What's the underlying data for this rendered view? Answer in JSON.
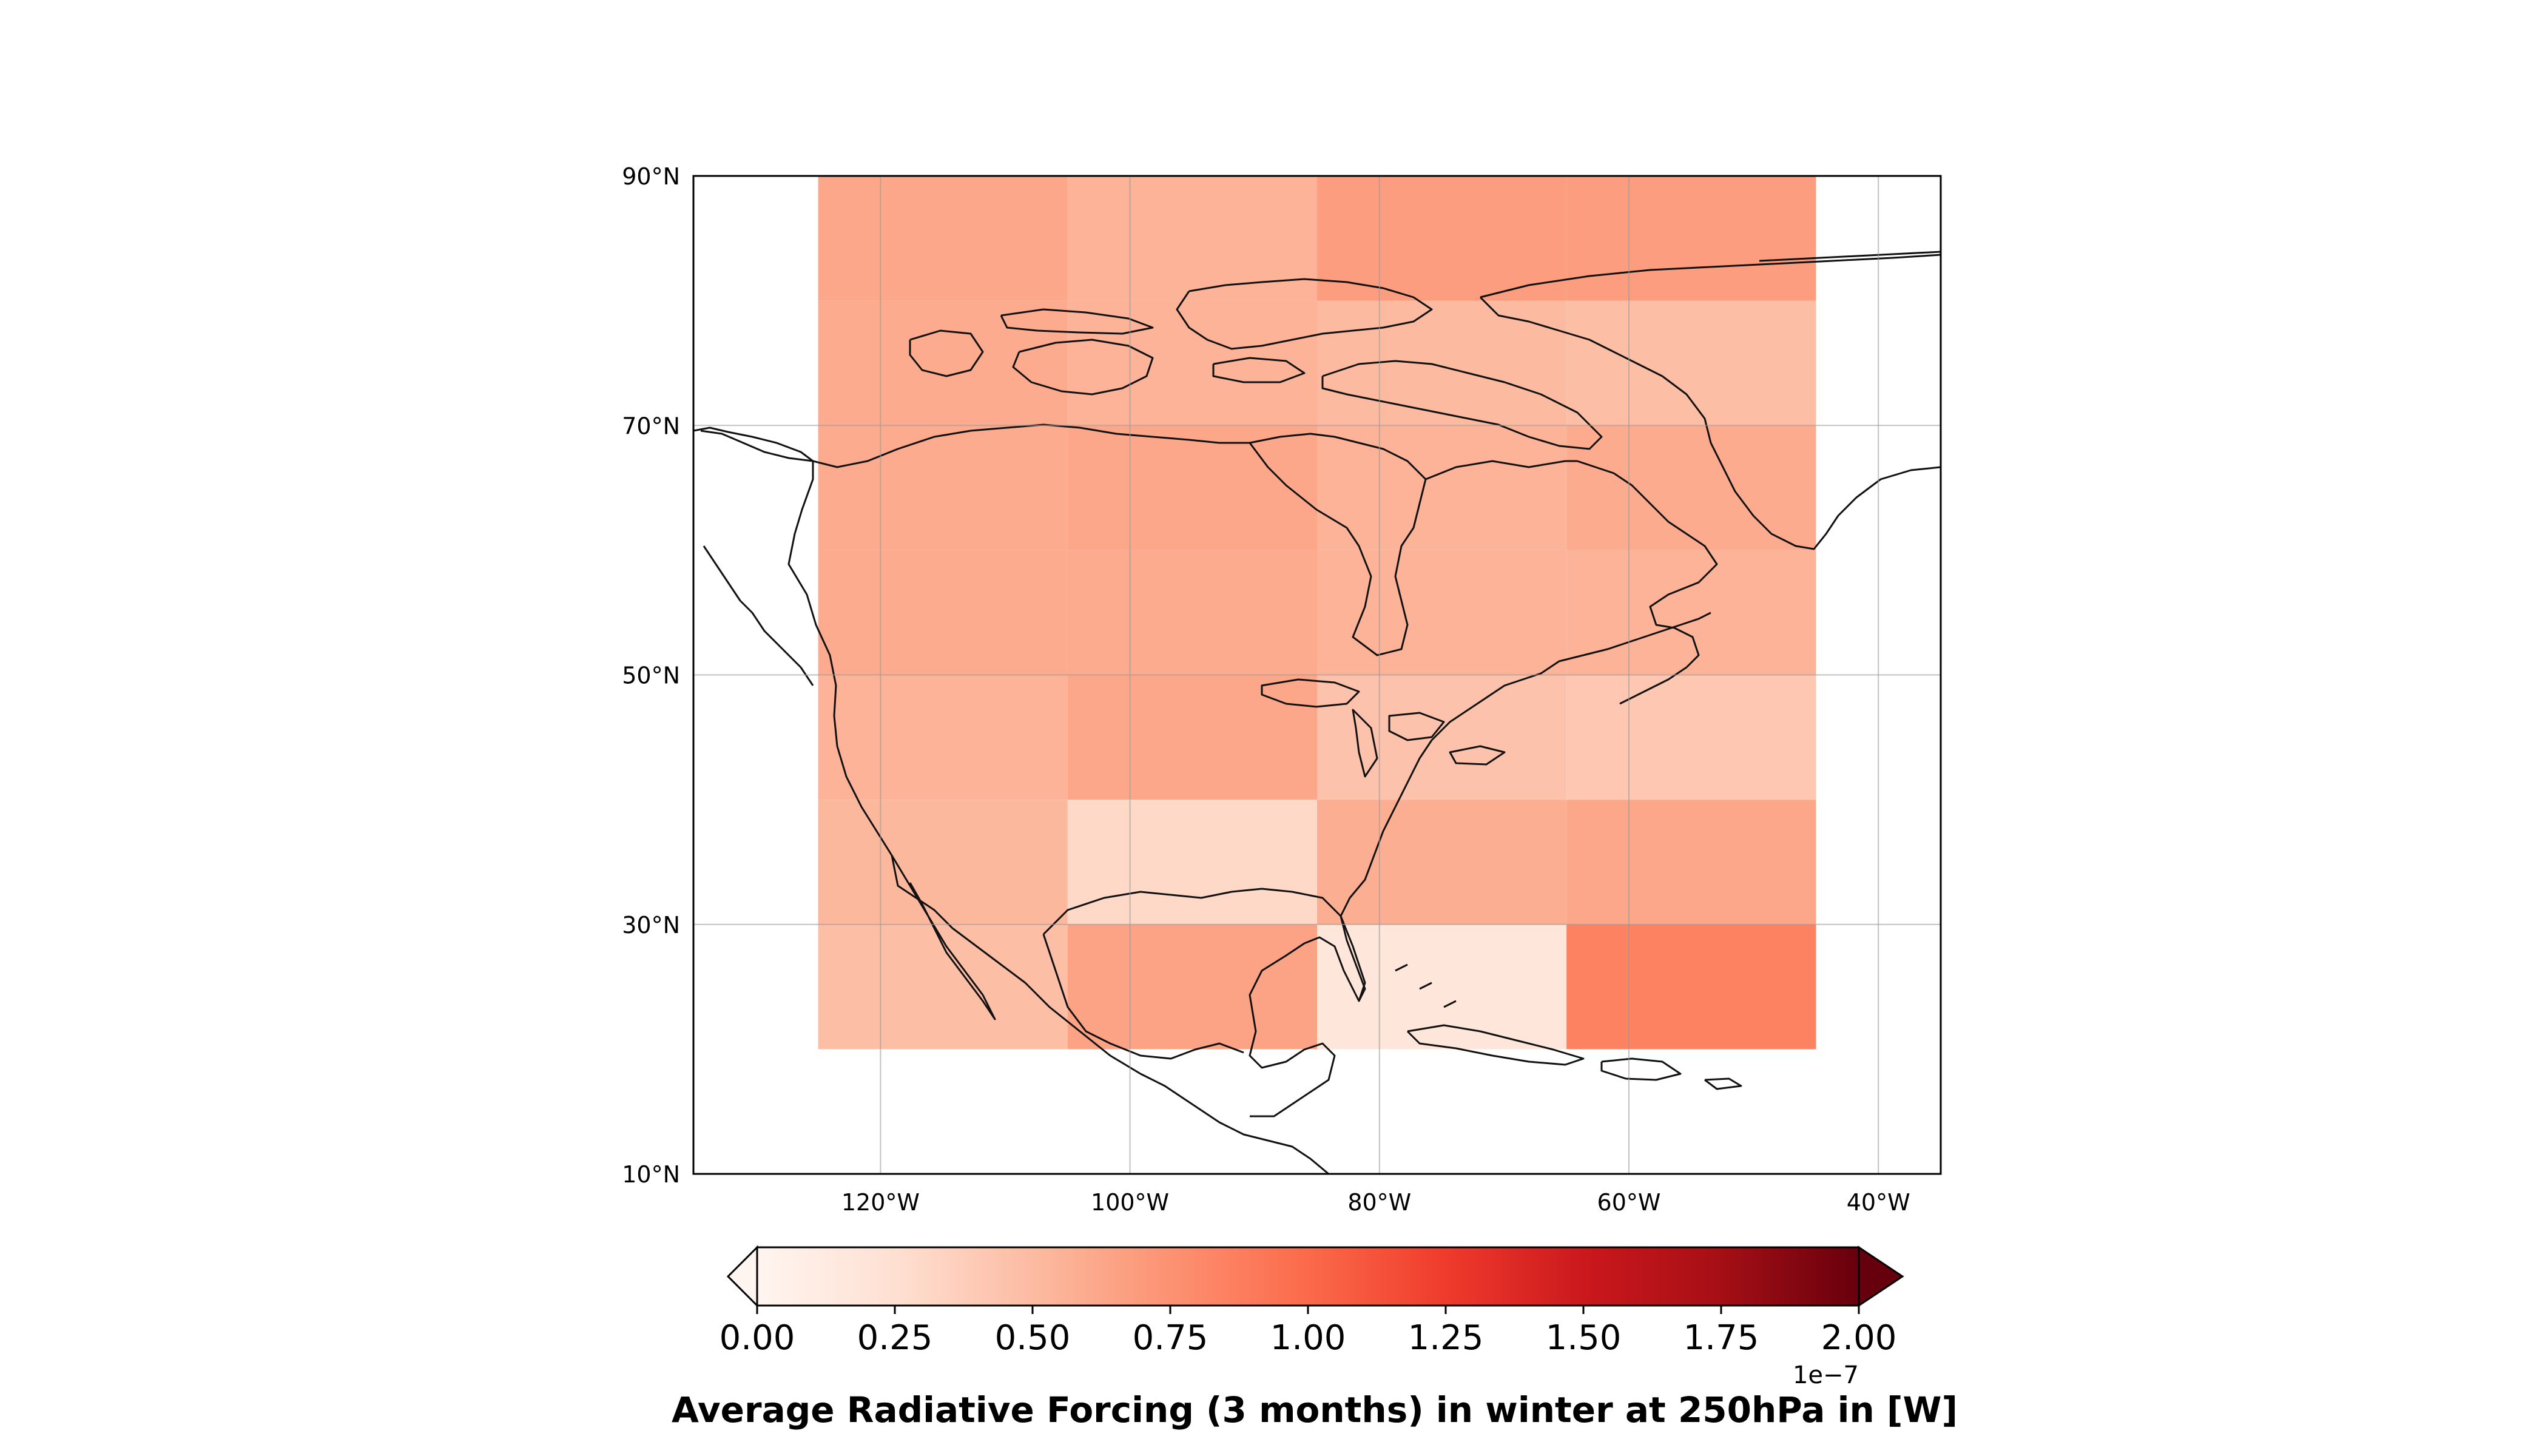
{
  "chart_data": {
    "type": "heatmap",
    "title": "",
    "colorbar_label": "Average Radiative Forcing (3 months) in winter at 250hPa in [W]",
    "colorbar_exponent": "1e−7",
    "colormap": "Reds",
    "colorbar_extend": "both",
    "vmin": 0.0,
    "vmax": 2.0,
    "colorbar_ticks": [
      0.0,
      0.25,
      0.5,
      0.75,
      1.0,
      1.25,
      1.5,
      1.75,
      2.0
    ],
    "colorbar_tick_labels": [
      "0.00",
      "0.25",
      "0.50",
      "0.75",
      "1.00",
      "1.25",
      "1.50",
      "1.75",
      "2.00"
    ],
    "xlim": [
      -135,
      -35
    ],
    "ylim": [
      10,
      90
    ],
    "xticks": [
      -120,
      -100,
      -80,
      -60,
      -40
    ],
    "xtick_labels": [
      "120°W",
      "100°W",
      "80°W",
      "60°W",
      "40°W"
    ],
    "yticks": [
      10,
      30,
      50,
      70,
      90
    ],
    "ytick_labels": [
      "10°N",
      "30°N",
      "50°N",
      "70°N",
      "90°N"
    ],
    "grid": true,
    "lon_edges": [
      -125,
      -105,
      -85,
      -65,
      -45
    ],
    "lat_edges": [
      20,
      30,
      40,
      50,
      60,
      70,
      80,
      90
    ],
    "values": [
      [
        0.48,
        0.65,
        0.18,
        0.85
      ],
      [
        0.52,
        0.3,
        0.58,
        0.62
      ],
      [
        0.55,
        0.62,
        0.45,
        0.42
      ],
      [
        0.6,
        0.6,
        0.55,
        0.55
      ],
      [
        0.6,
        0.62,
        0.55,
        0.6
      ],
      [
        0.6,
        0.55,
        0.5,
        0.48
      ],
      [
        0.62,
        0.55,
        0.68,
        0.68
      ]
    ]
  }
}
